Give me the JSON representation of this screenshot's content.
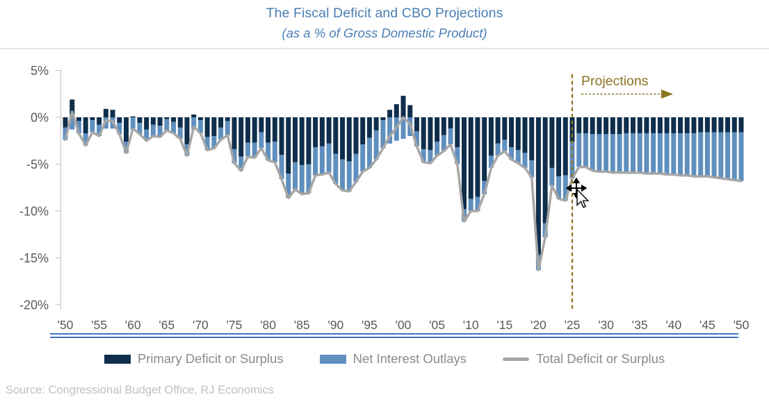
{
  "page": {
    "title": "The Fiscal Deficit and CBO Projections",
    "subtitle": "(as a % of Gross Domestic Product)",
    "source": "Source: Congressional Budget Office, RJ Economics"
  },
  "colors": {
    "title_blue": "#4A7EB5",
    "primary_bar": "#0F2E4C",
    "interest_bar": "#5F8FBF",
    "total_line": "#A6A6A6",
    "projection_olive": "#8A7420",
    "axis_text": "#595959",
    "axis_line": "#BFBFBF",
    "zero_line": "#D9D9D9",
    "legend_text": "#8A8A8A",
    "source_text": "#C0C0C0",
    "underline_blue": "#4472C4"
  },
  "annotation": {
    "label": "Projections",
    "divider_year": 2025
  },
  "legend": [
    {
      "label": "Primary Deficit or Surplus",
      "swatch": "primary_bar",
      "type": "rect"
    },
    {
      "label": "Net Interest Outlays",
      "swatch": "interest_bar",
      "type": "rect"
    },
    {
      "label": "Total Deficit or Surplus",
      "swatch": "total_line",
      "type": "line"
    }
  ],
  "chart_data": {
    "type": "bar",
    "subtype": "stacked-bars-with-line",
    "title": "The Fiscal Deficit and CBO Projections",
    "subtitle": "(as a % of Gross Domestic Product)",
    "xlabel": "",
    "ylabel": "",
    "ylim": [
      -20,
      5
    ],
    "grid": false,
    "legend_position": "bottom",
    "start_year": 1950,
    "end_year": 2050,
    "x_tick_labels": [
      "'50",
      "'55",
      "'60",
      "'65",
      "'70",
      "'75",
      "'80",
      "'85",
      "'90",
      "'95",
      "'00",
      "'05",
      "'10",
      "'15",
      "'20",
      "'25",
      "'30",
      "'35",
      "'40",
      "'45",
      "'50"
    ],
    "x_tick_step_years": 5,
    "y_ticks": [
      {
        "label": "5%",
        "value": 5
      },
      {
        "label": "0%",
        "value": 0
      },
      {
        "label": "-5%",
        "value": -5
      },
      {
        "label": "-10%",
        "value": -10
      },
      {
        "label": "-15%",
        "value": -15
      },
      {
        "label": "-20%",
        "value": -20
      }
    ],
    "series": [
      {
        "name": "Primary Deficit or Surplus",
        "type": "stacked-bar",
        "values": [
          -1.1,
          1.9,
          -0.4,
          -1.7,
          -0.3,
          -0.8,
          0.9,
          0.8,
          -0.6,
          -2.6,
          0.1,
          -0.6,
          -1.3,
          -0.8,
          -0.9,
          -0.2,
          -0.5,
          -1.1,
          -2.9,
          0.3,
          -0.3,
          -2.1,
          -2.0,
          -1.1,
          -0.4,
          -3.4,
          -4.2,
          -2.7,
          -2.7,
          -1.6,
          -2.7,
          -2.6,
          -4.0,
          -6.0,
          -4.8,
          -5.1,
          -5.0,
          -3.2,
          -3.1,
          -2.8,
          -3.9,
          -4.5,
          -4.7,
          -3.9,
          -2.9,
          -2.2,
          -1.4,
          -0.3,
          0.8,
          1.4,
          2.3,
          1.3,
          -1.5,
          -3.4,
          -3.5,
          -2.6,
          -1.9,
          -1.2,
          -3.2,
          -9.8,
          -8.7,
          -8.5,
          -6.8,
          -4.1,
          -2.8,
          -2.4,
          -3.2,
          -3.5,
          -3.8,
          -4.6,
          -14.7,
          -11.3,
          -5.4,
          -6.3,
          -6.2,
          -2.6,
          -1.7,
          -1.7,
          -1.8,
          -1.8,
          -1.8,
          -1.8,
          -1.8,
          -1.7,
          -1.7,
          -1.7,
          -1.7,
          -1.7,
          -1.7,
          -1.7,
          -1.7,
          -1.7,
          -1.7,
          -1.7,
          -1.6,
          -1.6,
          -1.6,
          -1.6,
          -1.6,
          -1.6,
          -1.6
        ]
      },
      {
        "name": "Net Interest Outlays",
        "type": "stacked-bar",
        "values": [
          -1.3,
          -1.3,
          -1.3,
          -1.3,
          -1.3,
          -1.2,
          -1.2,
          -1.2,
          -1.2,
          -1.2,
          -1.3,
          -1.2,
          -1.2,
          -1.2,
          -1.2,
          -1.2,
          -1.2,
          -1.2,
          -1.2,
          -1.3,
          -1.4,
          -1.4,
          -1.3,
          -1.3,
          -1.5,
          -1.5,
          -1.5,
          -1.5,
          -1.6,
          -1.7,
          -1.9,
          -2.2,
          -2.6,
          -2.6,
          -2.9,
          -3.1,
          -3.1,
          -3.0,
          -3.0,
          -3.1,
          -3.2,
          -3.3,
          -3.2,
          -3.0,
          -2.9,
          -3.2,
          -3.1,
          -3.0,
          -2.8,
          -2.5,
          -2.3,
          -2.0,
          -1.6,
          -1.4,
          -1.4,
          -1.5,
          -1.7,
          -1.7,
          -1.8,
          -1.3,
          -1.3,
          -1.5,
          -1.4,
          -1.3,
          -1.3,
          -1.2,
          -1.3,
          -1.4,
          -1.6,
          -1.8,
          -1.6,
          -1.5,
          -1.9,
          -2.4,
          -2.7,
          -3.9,
          -3.6,
          -3.6,
          -3.9,
          -4.0,
          -4.0,
          -4.1,
          -4.1,
          -4.2,
          -4.2,
          -4.2,
          -4.3,
          -4.3,
          -4.3,
          -4.4,
          -4.4,
          -4.5,
          -4.5,
          -4.6,
          -4.7,
          -4.7,
          -4.8,
          -4.9,
          -5.0,
          -5.1,
          -5.2
        ]
      },
      {
        "name": "Total Deficit or Surplus",
        "type": "line",
        "derivation": "sum of Primary Deficit or Surplus and Net Interest Outlays for each year"
      }
    ]
  }
}
